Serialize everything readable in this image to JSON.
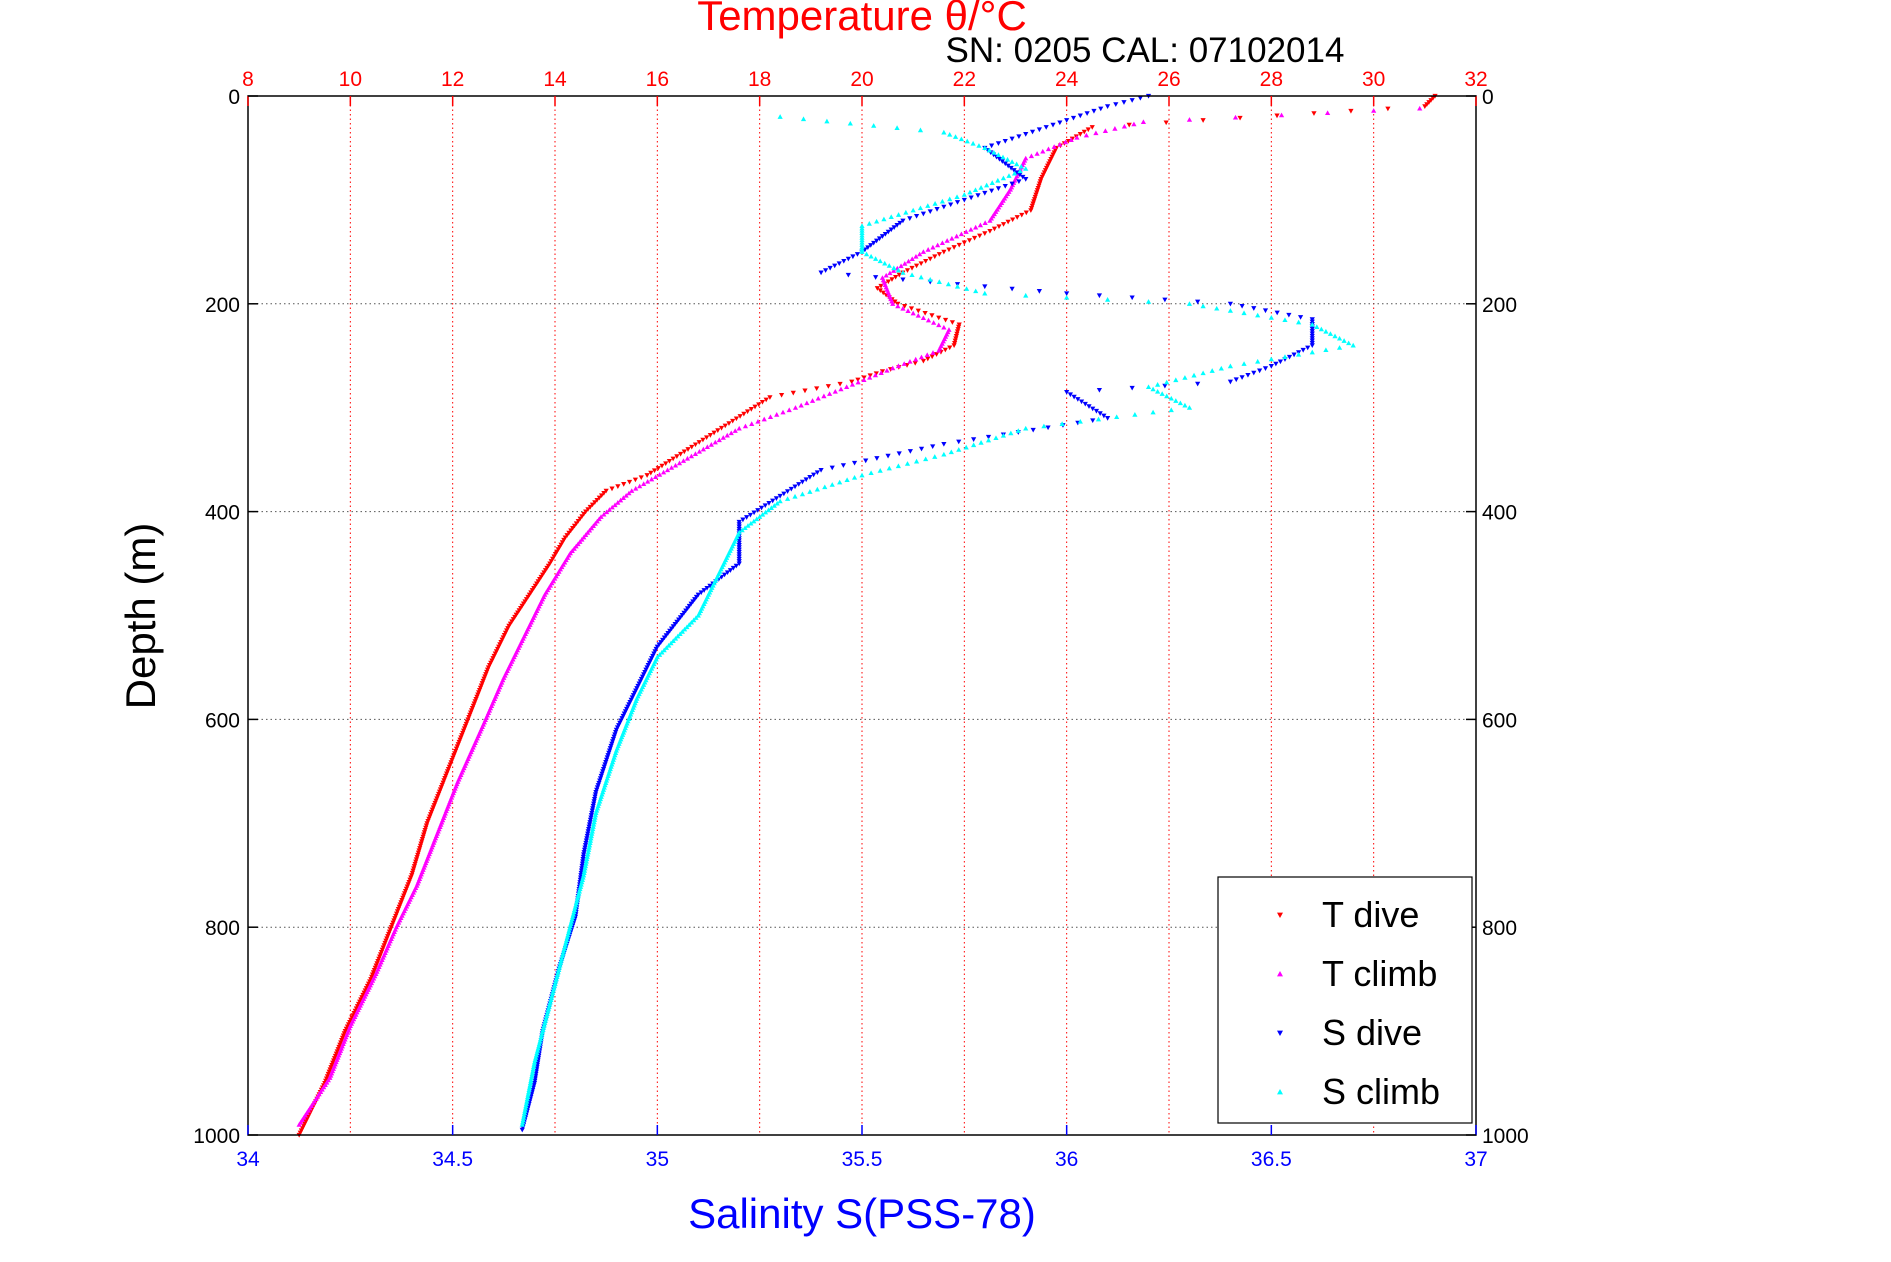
{
  "chart_data": {
    "type": "scatter",
    "title": "Temperature θ/°C",
    "subtitle": "SN: 0205  CAL: 07102014",
    "ylabel": "Depth (m)",
    "xlabel": "Salinity S(PSS-78)",
    "y_axis": {
      "range": [
        0,
        1000
      ],
      "reversed": true,
      "ticks": [
        "0",
        "200",
        "400",
        "600",
        "800",
        "1000"
      ],
      "tick_values": [
        0,
        200,
        400,
        600,
        800,
        1000
      ]
    },
    "x_axis_bottom": {
      "label": "Salinity S(PSS-78)",
      "range": [
        34,
        37
      ],
      "color": "#0000ff",
      "ticks": [
        "34",
        "34.5",
        "35",
        "35.5",
        "36",
        "36.5",
        "37"
      ],
      "tick_values": [
        34,
        34.5,
        35,
        35.5,
        36,
        36.5,
        37
      ]
    },
    "x_axis_top": {
      "label": "Temperature θ/°C",
      "range": [
        8,
        32
      ],
      "color": "#ff0000",
      "ticks": [
        "8",
        "10",
        "12",
        "14",
        "16",
        "18",
        "20",
        "22",
        "24",
        "26",
        "28",
        "30",
        "32"
      ],
      "tick_values": [
        8,
        10,
        12,
        14,
        16,
        18,
        20,
        22,
        24,
        26,
        28,
        30,
        32
      ]
    },
    "grid": true,
    "legend_position": "bottom-right",
    "series": [
      {
        "name": "T dive",
        "axis": "temperature",
        "color": "#ff0000",
        "marker": "triangle-down",
        "points": [
          [
            31.2,
            0
          ],
          [
            31.0,
            10
          ],
          [
            24.5,
            30
          ],
          [
            23.8,
            50
          ],
          [
            23.5,
            80
          ],
          [
            23.3,
            110
          ],
          [
            22.5,
            130
          ],
          [
            21.6,
            150
          ],
          [
            20.8,
            170
          ],
          [
            20.3,
            185
          ],
          [
            20.7,
            200
          ],
          [
            21.9,
            220
          ],
          [
            21.8,
            240
          ],
          [
            21.2,
            255
          ],
          [
            20.4,
            265
          ],
          [
            19.8,
            275
          ],
          [
            18.2,
            290
          ],
          [
            17.4,
            315
          ],
          [
            16.6,
            340
          ],
          [
            15.8,
            365
          ],
          [
            15.0,
            380
          ],
          [
            14.6,
            400
          ],
          [
            14.2,
            425
          ],
          [
            13.9,
            450
          ],
          [
            13.5,
            480
          ],
          [
            13.1,
            510
          ],
          [
            12.7,
            550
          ],
          [
            12.3,
            600
          ],
          [
            11.9,
            650
          ],
          [
            11.5,
            700
          ],
          [
            11.2,
            750
          ],
          [
            10.8,
            800
          ],
          [
            10.4,
            850
          ],
          [
            9.9,
            900
          ],
          [
            9.5,
            950
          ],
          [
            9.0,
            1000
          ]
        ]
      },
      {
        "name": "T climb",
        "axis": "temperature",
        "color": "#ff00ff",
        "marker": "triangle-up",
        "points": [
          [
            30.9,
            12
          ],
          [
            25.5,
            25
          ],
          [
            24.2,
            40
          ],
          [
            23.2,
            60
          ],
          [
            22.9,
            90
          ],
          [
            22.5,
            120
          ],
          [
            21.2,
            150
          ],
          [
            20.4,
            175
          ],
          [
            20.6,
            200
          ],
          [
            21.7,
            225
          ],
          [
            21.5,
            245
          ],
          [
            20.6,
            262
          ],
          [
            19.7,
            280
          ],
          [
            18.7,
            300
          ],
          [
            17.6,
            320
          ],
          [
            16.9,
            340
          ],
          [
            16.2,
            360
          ],
          [
            15.5,
            380
          ],
          [
            14.9,
            405
          ],
          [
            14.3,
            440
          ],
          [
            13.8,
            480
          ],
          [
            13.4,
            520
          ],
          [
            13.0,
            560
          ],
          [
            12.6,
            605
          ],
          [
            12.1,
            660
          ],
          [
            11.7,
            710
          ],
          [
            11.3,
            760
          ],
          [
            10.9,
            800
          ],
          [
            10.5,
            845
          ],
          [
            10.0,
            895
          ],
          [
            9.6,
            945
          ],
          [
            9.0,
            990
          ]
        ]
      },
      {
        "name": "S dive",
        "axis": "salinity",
        "color": "#0000ff",
        "marker": "triangle-down",
        "points": [
          [
            36.2,
            0
          ],
          [
            36.1,
            10
          ],
          [
            35.8,
            50
          ],
          [
            35.9,
            80
          ],
          [
            35.6,
            120
          ],
          [
            35.5,
            150
          ],
          [
            35.4,
            170
          ],
          [
            36.0,
            190
          ],
          [
            36.4,
            200
          ],
          [
            36.6,
            215
          ],
          [
            36.6,
            240
          ],
          [
            36.5,
            260
          ],
          [
            36.4,
            275
          ],
          [
            36.0,
            285
          ],
          [
            36.1,
            310
          ],
          [
            35.7,
            335
          ],
          [
            35.4,
            360
          ],
          [
            35.3,
            385
          ],
          [
            35.2,
            410
          ],
          [
            35.2,
            450
          ],
          [
            35.1,
            480
          ],
          [
            35.0,
            530
          ],
          [
            34.95,
            570
          ],
          [
            34.9,
            610
          ],
          [
            34.85,
            670
          ],
          [
            34.82,
            730
          ],
          [
            34.8,
            790
          ],
          [
            34.76,
            840
          ],
          [
            34.72,
            900
          ],
          [
            34.7,
            950
          ],
          [
            34.67,
            995
          ]
        ]
      },
      {
        "name": "S climb",
        "axis": "salinity",
        "color": "#00ffff",
        "marker": "triangle-up",
        "points": [
          [
            35.3,
            20
          ],
          [
            35.7,
            35
          ],
          [
            35.8,
            50
          ],
          [
            35.9,
            70
          ],
          [
            35.75,
            95
          ],
          [
            35.5,
            125
          ],
          [
            35.5,
            150
          ],
          [
            35.6,
            170
          ],
          [
            35.8,
            190
          ],
          [
            36.3,
            200
          ],
          [
            36.6,
            220
          ],
          [
            36.7,
            240
          ],
          [
            36.4,
            260
          ],
          [
            36.2,
            280
          ],
          [
            36.3,
            300
          ],
          [
            35.9,
            320
          ],
          [
            35.7,
            345
          ],
          [
            35.5,
            365
          ],
          [
            35.3,
            390
          ],
          [
            35.2,
            420
          ],
          [
            35.15,
            460
          ],
          [
            35.1,
            500
          ],
          [
            35.0,
            540
          ],
          [
            34.95,
            580
          ],
          [
            34.9,
            630
          ],
          [
            34.85,
            690
          ],
          [
            34.82,
            750
          ],
          [
            34.78,
            810
          ],
          [
            34.74,
            870
          ],
          [
            34.7,
            930
          ],
          [
            34.67,
            990
          ]
        ]
      }
    ]
  }
}
